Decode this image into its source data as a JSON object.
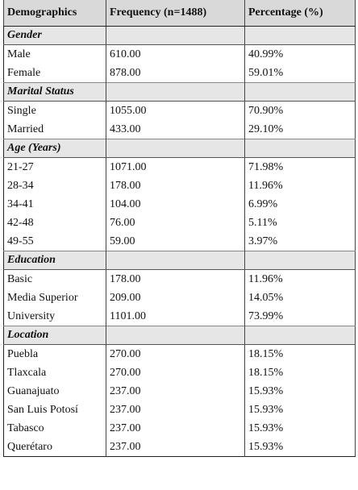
{
  "table": {
    "header": [
      "Demographics",
      "Frequency (n=1488)",
      "Percentage (%)"
    ],
    "sections": [
      {
        "title": "Gender",
        "rows": [
          [
            "Male",
            "610.00",
            "40.99%"
          ],
          [
            "Female",
            "878.00",
            "59.01%"
          ]
        ]
      },
      {
        "title": "Marital Status",
        "rows": [
          [
            "Single",
            "1055.00",
            "70.90%"
          ],
          [
            "Married",
            "433.00",
            "29.10%"
          ]
        ]
      },
      {
        "title": "Age (Years)",
        "rows": [
          [
            "21-27",
            "1071.00",
            "71.98%"
          ],
          [
            "28-34",
            "178.00",
            "11.96%"
          ],
          [
            "34-41",
            "104.00",
            "6.99%"
          ],
          [
            "42-48",
            "76.00",
            "5.11%"
          ],
          [
            "49-55",
            "59.00",
            "3.97%"
          ]
        ]
      },
      {
        "title": "Education",
        "rows": [
          [
            "Basic",
            "178.00",
            "11.96%"
          ],
          [
            "Media Superior",
            "209.00",
            "14.05%"
          ],
          [
            "University",
            "1101.00",
            "73.99%"
          ]
        ]
      },
      {
        "title": "Location",
        "rows": [
          [
            "Puebla",
            "270.00",
            "18.15%"
          ],
          [
            "Tlaxcala",
            "270.00",
            "18.15%"
          ],
          [
            "Guanajuato",
            "237.00",
            "15.93%"
          ],
          [
            "San Luis Potosí",
            "237.00",
            "15.93%"
          ],
          [
            "Tabasco",
            "237.00",
            "15.93%"
          ],
          [
            "Querétaro",
            "237.00",
            "15.93%"
          ]
        ]
      }
    ]
  }
}
